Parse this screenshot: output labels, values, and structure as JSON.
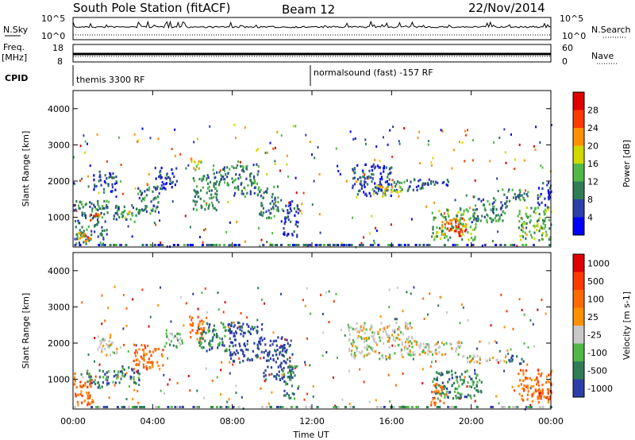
{
  "header": {
    "station": "South Pole Station (fitACF)",
    "beam": "Beam 12",
    "date": "22/Nov/2014"
  },
  "status_panel": {
    "left_nsky_label": "N.Sky",
    "left_nsky_ticks": [
      "10^5",
      "10^0"
    ],
    "right_nsky_ticks": [
      "10^5",
      "10^0"
    ],
    "right_nsearch_label": "N.Search",
    "left_freq_label_1": "Freq.",
    "left_freq_label_2": "[MHz]",
    "left_freq_ticks": [
      "18",
      "8"
    ],
    "right_nave_ticks": [
      "60",
      "0"
    ],
    "right_nave_label": "Nave",
    "cpid_label": "CPID",
    "cpid_mode_1": "themis 3300 RF",
    "cpid_mode_2": "normalsound (fast) -157 RF"
  },
  "chart_data": [
    {
      "type": "heatmap",
      "name": "power",
      "ylabel": "Slant Range [km]",
      "ylim": [
        180,
        4500
      ],
      "yticks": [
        1000,
        2000,
        3000,
        4000
      ],
      "xlim": [
        0,
        24
      ],
      "colorbar_label": "Power [dB]",
      "colorbar_ticks": [
        "28",
        "24",
        "20",
        "16",
        "12",
        "8",
        "4"
      ],
      "colors": [
        "#0000ff",
        "#2e3ea8",
        "#2f7d56",
        "#52b847",
        "#d0d800",
        "#ff9000",
        "#ff3a00",
        "#e00000"
      ],
      "patches": [
        {
          "t0": 0.0,
          "t1": 1.7,
          "r0": 300,
          "r1": 1500,
          "level": 2
        },
        {
          "t0": 0.8,
          "t1": 1.3,
          "r0": 850,
          "r1": 1150,
          "level": 6
        },
        {
          "t0": 0.2,
          "t1": 0.9,
          "r0": 350,
          "r1": 600,
          "level": 5
        },
        {
          "t0": 1.0,
          "t1": 2.2,
          "r0": 1700,
          "r1": 2300,
          "level": 1
        },
        {
          "t0": 2.0,
          "t1": 3.3,
          "r0": 900,
          "r1": 1400,
          "level": 2
        },
        {
          "t0": 2.5,
          "t1": 3.0,
          "r0": 1000,
          "r1": 1200,
          "level": 4
        },
        {
          "t0": 3.2,
          "t1": 4.3,
          "r0": 1100,
          "r1": 1900,
          "level": 2
        },
        {
          "t0": 4.0,
          "t1": 5.2,
          "r0": 1800,
          "r1": 2400,
          "level": 1
        },
        {
          "t0": 5.8,
          "t1": 6.4,
          "r0": 2300,
          "r1": 2700,
          "level": 4
        },
        {
          "t0": 6.0,
          "t1": 7.2,
          "r0": 1200,
          "r1": 2200,
          "level": 2
        },
        {
          "t0": 7.0,
          "t1": 8.0,
          "r0": 1900,
          "r1": 2500,
          "level": 2
        },
        {
          "t0": 8.0,
          "t1": 9.3,
          "r0": 1600,
          "r1": 2500,
          "level": 2
        },
        {
          "t0": 9.3,
          "t1": 10.3,
          "r0": 1000,
          "r1": 1900,
          "level": 2
        },
        {
          "t0": 10.5,
          "t1": 11.3,
          "r0": 500,
          "r1": 1500,
          "level": 1
        },
        {
          "t0": 14.0,
          "t1": 16.0,
          "r0": 1600,
          "r1": 2500,
          "level": 1
        },
        {
          "t0": 15.0,
          "t1": 16.5,
          "r0": 1600,
          "r1": 1900,
          "level": 4
        },
        {
          "t0": 16.0,
          "t1": 17.6,
          "r0": 1750,
          "r1": 2100,
          "level": 2
        },
        {
          "t0": 17.6,
          "t1": 19.0,
          "r0": 1900,
          "r1": 2100,
          "level": 1
        },
        {
          "t0": 18.0,
          "t1": 20.2,
          "r0": 400,
          "r1": 1300,
          "level": 3
        },
        {
          "t0": 18.5,
          "t1": 19.7,
          "r0": 500,
          "r1": 1000,
          "level": 6
        },
        {
          "t0": 20.0,
          "t1": 21.8,
          "r0": 900,
          "r1": 1600,
          "level": 2
        },
        {
          "t0": 21.5,
          "t1": 23.0,
          "r0": 1450,
          "r1": 1800,
          "level": 2
        },
        {
          "t0": 22.3,
          "t1": 24.0,
          "r0": 400,
          "r1": 1300,
          "level": 3
        },
        {
          "t0": 23.3,
          "t1": 24.0,
          "r0": 1300,
          "r1": 2000,
          "level": 1
        }
      ]
    },
    {
      "type": "heatmap",
      "name": "velocity",
      "ylabel": "Slant Range [km]",
      "ylim": [
        180,
        4500
      ],
      "yticks": [
        1000,
        2000,
        3000,
        4000
      ],
      "xlim": [
        0,
        24
      ],
      "colorbar_label": "Velocity [m s-1]",
      "colorbar_ticks": [
        "1000",
        "500",
        "100",
        "25",
        "-25",
        "-100",
        "-500",
        "-1000"
      ],
      "colors": [
        "#2e3ea8",
        "#2f7d56",
        "#52b847",
        "#c8c8c8",
        "#ff9000",
        "#ff6a00",
        "#ff3a00",
        "#e00000"
      ],
      "patches": [
        {
          "t0": 0.0,
          "t1": 1.0,
          "r0": 300,
          "r1": 1200,
          "level": 5
        },
        {
          "t0": 0.6,
          "t1": 1.8,
          "r0": 800,
          "r1": 1300,
          "level": 1
        },
        {
          "t0": 1.2,
          "t1": 2.2,
          "r0": 1700,
          "r1": 2300,
          "level": 3
        },
        {
          "t0": 2.0,
          "t1": 3.3,
          "r0": 900,
          "r1": 1400,
          "level": 1
        },
        {
          "t0": 3.0,
          "t1": 4.5,
          "r0": 1300,
          "r1": 2000,
          "level": 5
        },
        {
          "t0": 4.5,
          "t1": 5.5,
          "r0": 1900,
          "r1": 2400,
          "level": 2
        },
        {
          "t0": 5.8,
          "t1": 6.6,
          "r0": 2100,
          "r1": 2800,
          "level": 5
        },
        {
          "t0": 6.2,
          "t1": 8.0,
          "r0": 1800,
          "r1": 2600,
          "level": 1
        },
        {
          "t0": 7.8,
          "t1": 9.5,
          "r0": 1500,
          "r1": 2600,
          "level": 0
        },
        {
          "t0": 9.5,
          "t1": 11.0,
          "r0": 1000,
          "r1": 2200,
          "level": 0
        },
        {
          "t0": 10.5,
          "t1": 11.3,
          "r0": 500,
          "r1": 1400,
          "level": 1
        },
        {
          "t0": 13.8,
          "t1": 17.0,
          "r0": 1600,
          "r1": 2600,
          "level": 3
        },
        {
          "t0": 17.0,
          "t1": 19.5,
          "r0": 1700,
          "r1": 2100,
          "level": 3
        },
        {
          "t0": 18.0,
          "t1": 20.5,
          "r0": 500,
          "r1": 1300,
          "level": 1
        },
        {
          "t0": 17.9,
          "t1": 18.6,
          "r0": 300,
          "r1": 900,
          "level": 5
        },
        {
          "t0": 19.5,
          "t1": 21.8,
          "r0": 1500,
          "r1": 1700,
          "level": 3
        },
        {
          "t0": 21.8,
          "t1": 22.6,
          "r0": 1400,
          "r1": 1700,
          "level": 0
        },
        {
          "t0": 22.3,
          "t1": 24.0,
          "r0": 400,
          "r1": 1300,
          "level": 5
        },
        {
          "t0": 23.2,
          "t1": 24.0,
          "r0": 500,
          "r1": 800,
          "level": 6
        }
      ]
    }
  ],
  "x_axis": {
    "ticks": [
      "00:00",
      "04:00",
      "08:00",
      "12:00",
      "16:00",
      "20:00",
      "00:00"
    ],
    "label": "Time UT"
  },
  "colors": {
    "axis": "#000000",
    "frequency_line": "#000000"
  }
}
